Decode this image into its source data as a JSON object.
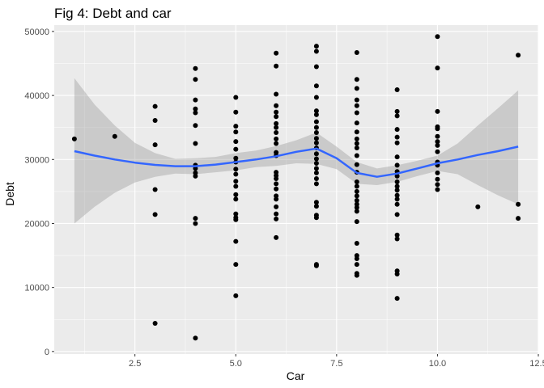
{
  "chart_data": {
    "type": "scatter",
    "title": "Fig 4: Debt and car",
    "xlabel": "Car",
    "ylabel": "Debt",
    "xlim": [
      0.5,
      12.5
    ],
    "ylim": [
      -400,
      51000
    ],
    "x_ticks": [
      2.5,
      5.0,
      7.5,
      10.0,
      12.5
    ],
    "x_tick_labels": [
      "2.5",
      "5.0",
      "7.5",
      "10.0",
      "12.5"
    ],
    "y_ticks": [
      0,
      10000,
      20000,
      30000,
      40000,
      50000
    ],
    "y_tick_labels": [
      "0",
      "10000",
      "20000",
      "30000",
      "40000",
      "50000"
    ],
    "grid": true,
    "legend": "none",
    "colors": {
      "panel_background": "#ebebeb",
      "grid_major": "#ffffff",
      "points": "#000000",
      "smooth_line": "#3366ff",
      "confidence_band": "#999999"
    },
    "points": [
      [
        1,
        33200
      ],
      [
        2,
        33600
      ],
      [
        3,
        38300
      ],
      [
        3,
        36100
      ],
      [
        3,
        32300
      ],
      [
        3,
        25300
      ],
      [
        3,
        21400
      ],
      [
        3,
        4400
      ],
      [
        4,
        44200
      ],
      [
        4,
        42500
      ],
      [
        4,
        39300
      ],
      [
        4,
        37900
      ],
      [
        4,
        37300
      ],
      [
        4,
        35300
      ],
      [
        4,
        32500
      ],
      [
        4,
        29100
      ],
      [
        4,
        28600
      ],
      [
        4,
        27900
      ],
      [
        4,
        27400
      ],
      [
        4,
        20800
      ],
      [
        4,
        20000
      ],
      [
        4,
        2100
      ],
      [
        5,
        39700
      ],
      [
        5,
        37400
      ],
      [
        5,
        35200
      ],
      [
        5,
        34300
      ],
      [
        5,
        32800
      ],
      [
        5,
        31600
      ],
      [
        5,
        30200
      ],
      [
        5,
        29600
      ],
      [
        5,
        28500
      ],
      [
        5,
        27700
      ],
      [
        5,
        26600
      ],
      [
        5,
        25800
      ],
      [
        5,
        24500
      ],
      [
        5,
        23800
      ],
      [
        5,
        21500
      ],
      [
        5,
        20900
      ],
      [
        5,
        20600
      ],
      [
        5,
        17200
      ],
      [
        5,
        13600
      ],
      [
        5,
        8700
      ],
      [
        6,
        46600
      ],
      [
        6,
        44600
      ],
      [
        6,
        40200
      ],
      [
        6,
        38400
      ],
      [
        6,
        37400
      ],
      [
        6,
        36700
      ],
      [
        6,
        35600
      ],
      [
        6,
        35000
      ],
      [
        6,
        34200
      ],
      [
        6,
        33200
      ],
      [
        6,
        32500
      ],
      [
        6,
        31100
      ],
      [
        6,
        30600
      ],
      [
        6,
        28000
      ],
      [
        6,
        27500
      ],
      [
        6,
        27000
      ],
      [
        6,
        26200
      ],
      [
        6,
        25400
      ],
      [
        6,
        24300
      ],
      [
        6,
        23800
      ],
      [
        6,
        22600
      ],
      [
        6,
        21500
      ],
      [
        6,
        20700
      ],
      [
        6,
        17800
      ],
      [
        7,
        47700
      ],
      [
        7,
        46900
      ],
      [
        7,
        44500
      ],
      [
        7,
        41500
      ],
      [
        7,
        39700
      ],
      [
        7,
        37600
      ],
      [
        7,
        37000
      ],
      [
        7,
        35900
      ],
      [
        7,
        35000
      ],
      [
        7,
        34200
      ],
      [
        7,
        33300
      ],
      [
        7,
        32600
      ],
      [
        7,
        31800
      ],
      [
        7,
        30900
      ],
      [
        7,
        30100
      ],
      [
        7,
        29400
      ],
      [
        7,
        28600
      ],
      [
        7,
        27900
      ],
      [
        7,
        27000
      ],
      [
        7,
        26200
      ],
      [
        7,
        23300
      ],
      [
        7,
        22700
      ],
      [
        7,
        21300
      ],
      [
        7,
        20900
      ],
      [
        7,
        13600
      ],
      [
        7,
        13400
      ],
      [
        8,
        46700
      ],
      [
        8,
        42500
      ],
      [
        8,
        41100
      ],
      [
        8,
        39300
      ],
      [
        8,
        38400
      ],
      [
        8,
        37300
      ],
      [
        8,
        35700
      ],
      [
        8,
        34300
      ],
      [
        8,
        33200
      ],
      [
        8,
        32500
      ],
      [
        8,
        31800
      ],
      [
        8,
        30600
      ],
      [
        8,
        29200
      ],
      [
        8,
        28000
      ],
      [
        8,
        26500
      ],
      [
        8,
        25800
      ],
      [
        8,
        25000
      ],
      [
        8,
        24300
      ],
      [
        8,
        23600
      ],
      [
        8,
        23000
      ],
      [
        8,
        22500
      ],
      [
        8,
        21900
      ],
      [
        8,
        20300
      ],
      [
        8,
        16900
      ],
      [
        8,
        15000
      ],
      [
        8,
        14500
      ],
      [
        8,
        13600
      ],
      [
        8,
        12200
      ],
      [
        8,
        11900
      ],
      [
        9,
        40900
      ],
      [
        9,
        37500
      ],
      [
        9,
        36800
      ],
      [
        9,
        34700
      ],
      [
        9,
        33500
      ],
      [
        9,
        32600
      ],
      [
        9,
        30400
      ],
      [
        9,
        29100
      ],
      [
        9,
        28100
      ],
      [
        9,
        27400
      ],
      [
        9,
        26500
      ],
      [
        9,
        25800
      ],
      [
        9,
        25200
      ],
      [
        9,
        24400
      ],
      [
        9,
        23800
      ],
      [
        9,
        23000
      ],
      [
        9,
        21400
      ],
      [
        9,
        18200
      ],
      [
        9,
        17600
      ],
      [
        9,
        12600
      ],
      [
        9,
        12100
      ],
      [
        9,
        8300
      ],
      [
        10,
        49200
      ],
      [
        10,
        44300
      ],
      [
        10,
        37500
      ],
      [
        10,
        35100
      ],
      [
        10,
        34800
      ],
      [
        10,
        33600
      ],
      [
        10,
        32800
      ],
      [
        10,
        32200
      ],
      [
        10,
        31200
      ],
      [
        10,
        29600
      ],
      [
        10,
        29100
      ],
      [
        10,
        27900
      ],
      [
        10,
        26900
      ],
      [
        10,
        26100
      ],
      [
        10,
        25300
      ],
      [
        11,
        22600
      ],
      [
        12,
        46300
      ],
      [
        12,
        23000
      ],
      [
        12,
        20800
      ]
    ],
    "smooth": {
      "method": "loess",
      "x": [
        1,
        1.5,
        2,
        2.5,
        3,
        3.5,
        4,
        4.5,
        5,
        5.5,
        6,
        6.5,
        7,
        7.5,
        8,
        8.5,
        9,
        9.5,
        10,
        10.5,
        11,
        11.5,
        12
      ],
      "y": [
        31300,
        30600,
        30000,
        29500,
        29150,
        28950,
        28950,
        29200,
        29600,
        30000,
        30500,
        31200,
        31700,
        30200,
        27900,
        27300,
        27800,
        28600,
        29400,
        30000,
        30700,
        31300,
        32000
      ],
      "lower": [
        20000,
        22600,
        24800,
        26400,
        27300,
        27800,
        27700,
        28000,
        28300,
        28800,
        29000,
        29400,
        29300,
        28500,
        26200,
        26000,
        26500,
        27400,
        28200,
        27700,
        26000,
        24400,
        23000
      ],
      "upper": [
        42700,
        38600,
        35300,
        32600,
        31000,
        30100,
        30200,
        30400,
        31000,
        31400,
        32100,
        33000,
        34200,
        32000,
        29600,
        28600,
        29100,
        29800,
        30600,
        32500,
        35300,
        38000,
        40800
      ]
    }
  }
}
